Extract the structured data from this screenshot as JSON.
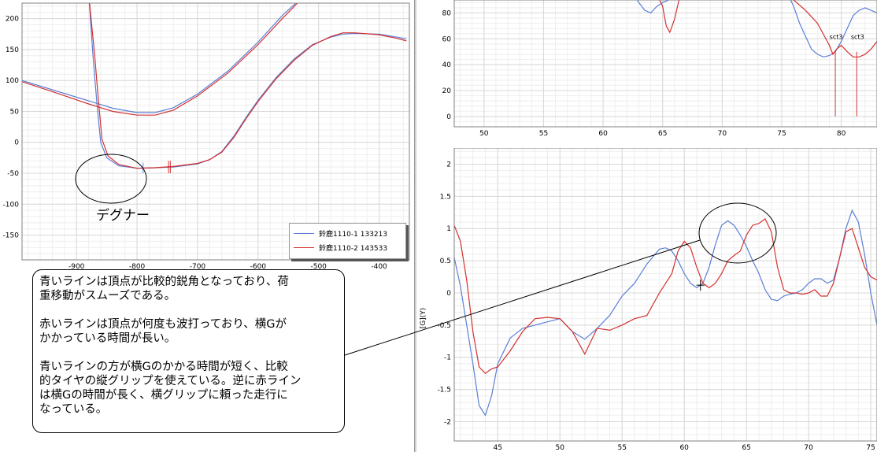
{
  "chart_data": [
    {
      "type": "line",
      "title": "",
      "xlabel": "",
      "ylabel": "",
      "xlim": [
        -990,
        -350
      ],
      "ylim": [
        -190,
        225
      ],
      "x_ticks": [
        "-900",
        "-800",
        "-700",
        "-600",
        "-500",
        "-400"
      ],
      "y_ticks": [
        "200",
        "150",
        "100",
        "50",
        "0",
        "-50",
        "-100",
        "-150"
      ],
      "grid": true,
      "legend_position": "bottom-right",
      "series": [
        {
          "name": "鈴鹿1110-1 133213",
          "color": "#5b7fd6",
          "curves": [
            {
              "x": [
                -990,
                -940,
                -880,
                -840,
                -800,
                -770,
                -740,
                -700,
                -650,
                -600,
                -560,
                -530,
                -520
              ],
              "y": [
                100,
                85,
                67,
                55,
                48,
                48,
                56,
                78,
                115,
                162,
                205,
                232,
                240
              ]
            },
            {
              "x": [
                -880,
                -872,
                -866,
                -860,
                -850,
                -830,
                -800,
                -770,
                -740,
                -700,
                -680,
                -660,
                -640,
                -620,
                -600,
                -570,
                -540,
                -510,
                -480,
                -460,
                -440,
                -400,
                -370,
                -355
              ],
              "y": [
                240,
                130,
                60,
                0,
                -25,
                -38,
                -42,
                -41,
                -40,
                -35,
                -28,
                -15,
                10,
                40,
                68,
                105,
                135,
                158,
                170,
                175,
                176,
                175,
                170,
                167
              ]
            }
          ]
        },
        {
          "name": "鈴鹿1110-2 143533",
          "color": "#d43030",
          "curves": [
            {
              "x": [
                -990,
                -940,
                -880,
                -840,
                -800,
                -770,
                -740,
                -700,
                -650,
                -600,
                -560,
                -530,
                -520
              ],
              "y": [
                98,
                82,
                62,
                50,
                44,
                44,
                52,
                75,
                112,
                158,
                200,
                230,
                240
              ]
            },
            {
              "x": [
                -880,
                -870,
                -864,
                -858,
                -848,
                -830,
                -800,
                -770,
                -740,
                -700,
                -680,
                -660,
                -640,
                -620,
                -600,
                -570,
                -540,
                -510,
                -480,
                -460,
                -440,
                -400,
                -370,
                -355
              ],
              "y": [
                240,
                140,
                70,
                5,
                -22,
                -36,
                -42,
                -41,
                -39,
                -34,
                -28,
                -16,
                8,
                38,
                66,
                103,
                133,
                157,
                171,
                177,
                177,
                174,
                168,
                164
              ]
            }
          ]
        }
      ],
      "annotations": [
        "デグナー"
      ]
    },
    {
      "type": "line",
      "title": "",
      "xlabel": "",
      "ylabel": "",
      "xlim": [
        47.5,
        83
      ],
      "ylim": [
        -8,
        90
      ],
      "x_ticks": [
        "50",
        "55",
        "60",
        "65",
        "70",
        "75",
        "80"
      ],
      "y_ticks": [
        "80",
        "60",
        "40",
        "20",
        "0"
      ],
      "grid": true,
      "series": [
        {
          "name": "",
          "color": "#5b7fd6",
          "x": [
            62.5,
            63,
            63.5,
            64,
            64.5,
            65,
            65.5,
            66,
            75.5,
            76,
            76.5,
            77,
            77.5,
            78,
            78.5,
            79,
            79.5,
            80,
            80.5,
            81,
            81.5,
            82,
            82.5,
            83
          ],
          "y": [
            95,
            88,
            82,
            80,
            85,
            88,
            90,
            95,
            95,
            85,
            72,
            62,
            52,
            48,
            46,
            47,
            50,
            58,
            68,
            78,
            82,
            84,
            82,
            80
          ]
        },
        {
          "name": "",
          "color": "#d43030",
          "x": [
            64.5,
            65,
            65.3,
            65.6,
            66,
            66.5,
            75.5,
            76,
            77,
            78,
            79,
            79.3,
            79.6,
            80,
            80.5,
            81,
            81.5,
            82,
            82.5,
            83
          ],
          "y": [
            95,
            85,
            70,
            65,
            75,
            95,
            95,
            90,
            82,
            72,
            55,
            48,
            52,
            55,
            50,
            46,
            46,
            48,
            52,
            58
          ]
        }
      ],
      "markers": [
        {
          "label": "sct3",
          "x": 79.5
        },
        {
          "label": "sct3",
          "x": 81.3
        }
      ]
    },
    {
      "type": "line",
      "title": "",
      "xlabel": "",
      "ylabel": "[G](Y)",
      "xlim": [
        41.5,
        75.5
      ],
      "ylim": [
        -2.3,
        2.25
      ],
      "x_ticks": [
        "45",
        "50",
        "55",
        "60",
        "65",
        "70",
        "75"
      ],
      "y_ticks": [
        "2",
        "1.5",
        "1",
        "0.5",
        "0",
        "-0.5",
        "-1",
        "-1.5",
        "-2"
      ],
      "grid": true,
      "series": [
        {
          "name": "",
          "color": "#5b7fd6",
          "x": [
            41.5,
            42,
            42.5,
            43,
            43.5,
            44,
            44.5,
            45,
            46,
            47,
            48,
            49,
            50,
            51,
            52,
            53,
            54,
            55,
            56,
            57,
            58,
            58.5,
            59,
            59.5,
            60,
            60.5,
            61,
            61.5,
            62,
            62.5,
            63,
            63.5,
            64,
            64.5,
            65,
            65.5,
            66,
            66.5,
            67,
            67.5,
            68,
            68.5,
            69,
            69.5,
            70,
            70.5,
            71,
            71.5,
            72,
            72.5,
            73,
            73.5,
            74,
            74.5,
            75,
            75.5
          ],
          "y": [
            0.55,
            0.1,
            -0.5,
            -1.1,
            -1.75,
            -1.9,
            -1.6,
            -1.1,
            -0.7,
            -0.55,
            -0.5,
            -0.45,
            -0.4,
            -0.6,
            -0.72,
            -0.55,
            -0.35,
            -0.05,
            0.15,
            0.45,
            0.68,
            0.7,
            0.65,
            0.5,
            0.3,
            0.15,
            0.08,
            0.15,
            0.4,
            0.75,
            1.05,
            1.12,
            1.05,
            0.9,
            0.72,
            0.5,
            0.3,
            0.05,
            -0.1,
            -0.12,
            -0.05,
            -0.02,
            0.0,
            0.05,
            0.15,
            0.22,
            0.22,
            0.15,
            0.2,
            0.55,
            1.0,
            1.28,
            1.1,
            0.6,
            0.0,
            -0.5
          ]
        },
        {
          "name": "",
          "color": "#d43030",
          "x": [
            41.5,
            42,
            42.5,
            43,
            43.5,
            44,
            44.5,
            45,
            46,
            47,
            48,
            49,
            50,
            51,
            52,
            52.5,
            53,
            54,
            55,
            56,
            57,
            58,
            59,
            59.5,
            60,
            60.5,
            61,
            61.5,
            62,
            62.5,
            63,
            63.5,
            64,
            64.5,
            65,
            65.5,
            66,
            66.5,
            67,
            67.5,
            68,
            68.5,
            69,
            69.5,
            70,
            70.5,
            71,
            71.5,
            72,
            72.5,
            73,
            73.5,
            74,
            74.5,
            75,
            75.5
          ],
          "y": [
            1.05,
            0.8,
            0.2,
            -0.6,
            -1.15,
            -1.25,
            -1.18,
            -1.15,
            -0.9,
            -0.6,
            -0.4,
            -0.38,
            -0.4,
            -0.6,
            -0.95,
            -0.75,
            -0.55,
            -0.58,
            -0.5,
            -0.4,
            -0.35,
            0.0,
            0.3,
            0.65,
            0.8,
            0.7,
            0.4,
            0.15,
            0.08,
            0.15,
            0.3,
            0.5,
            0.58,
            0.65,
            0.9,
            1.05,
            1.08,
            1.15,
            0.95,
            0.4,
            0.05,
            0.0,
            0.0,
            -0.02,
            0.0,
            0.05,
            -0.05,
            -0.05,
            0.15,
            0.55,
            0.95,
            1.0,
            0.7,
            0.4,
            0.25,
            0.2
          ]
        }
      ]
    }
  ],
  "legend": {
    "items": [
      {
        "label": "鈴鹿1110-1 133213",
        "color": "#5b7fd6"
      },
      {
        "label": "鈴鹿1110-2 143533",
        "color": "#d43030"
      }
    ]
  },
  "callout": {
    "degner": "デグナー",
    "paragraphs": [
      "青いラインは頂点が比較的鋭角となっており、荷\n重移動がスムーズである。",
      "赤いラインは頂点が何度も波打っており、横Gが\nかかっている時間が長い。",
      "青いラインの方が横Gのかかる時間が短く、比較\n的タイヤの縦グリップを使えている。逆に赤ライン\nは横Gの時間が長く、横グリップに頼った走行に\nなっている。"
    ]
  }
}
